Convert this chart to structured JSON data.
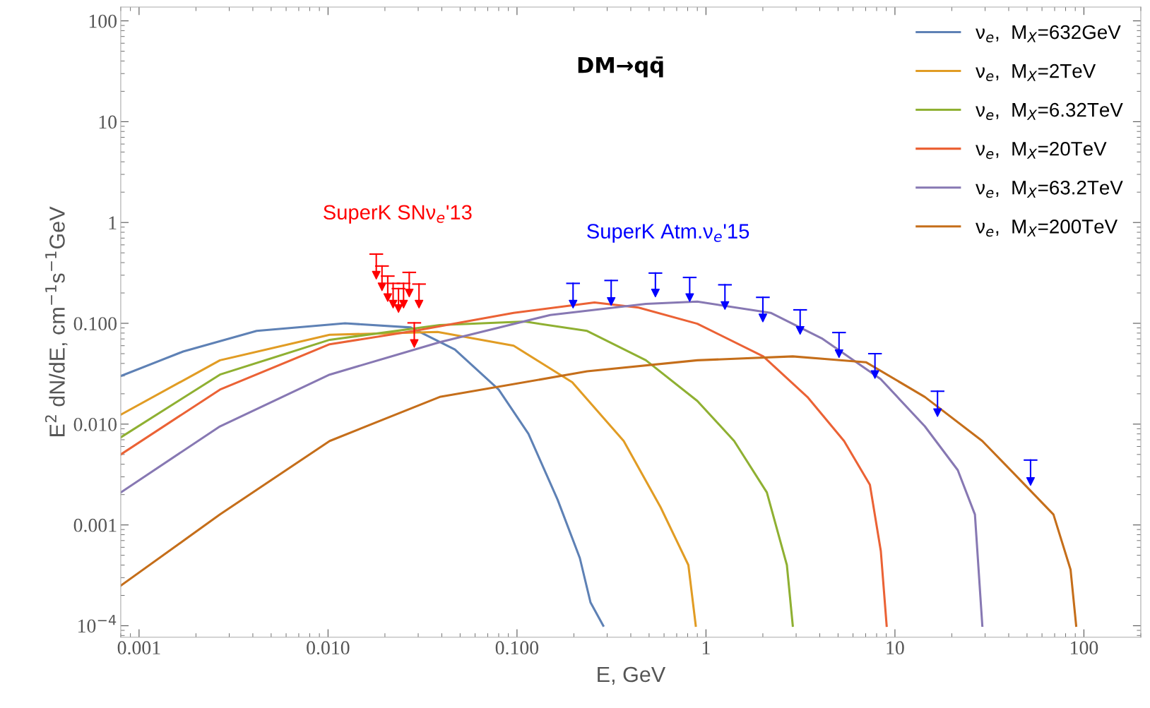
{
  "chart_data": {
    "type": "line",
    "title": "DM→qq̄",
    "xlabel": "E, GeV",
    "ylabel": "E$^{2}$ dN/dE, cm$^{−1}$s$^{−1}$GeV",
    "log": "xy",
    "grid": false,
    "legend": "top right",
    "xlim": [
      0.0008,
      200
    ],
    "ylim": [
      7.7e-05,
      137
    ],
    "xticks": [
      {
        "value": 0.001,
        "label": "0.001"
      },
      {
        "value": 0.01,
        "label": "0.010"
      },
      {
        "value": 0.1,
        "label": "0.100"
      },
      1,
      10,
      100
    ],
    "yticks": [
      {
        "value": 0.0001,
        "label": "10$^{−4}$"
      },
      {
        "value": 0.001,
        "label": "0.001"
      },
      {
        "value": 0.01,
        "label": "0.010"
      },
      {
        "value": 0.1,
        "label": "0.100"
      },
      1,
      10,
      100
    ],
    "series": [
      {
        "name": "ν$_{e}$,  M$_{X}$=632GeV",
        "color": "#5e81b5",
        "x": [
          0.0008,
          0.00171,
          0.00419,
          0.0123,
          0.0274,
          0.0469,
          0.08,
          0.115,
          0.164,
          0.215,
          0.245,
          0.286
        ],
        "values": [
          0.03,
          0.0525,
          0.084,
          0.1,
          0.091,
          0.055,
          0.022,
          0.008,
          0.00178,
          0.00047,
          0.00017,
          0.0001
        ]
      },
      {
        "name": "ν$_{e}$,  M$_{X}$=2TeV",
        "color": "#e19c24",
        "x": [
          0.0008,
          0.00268,
          0.0102,
          0.038,
          0.096,
          0.196,
          0.367,
          0.575,
          0.807,
          0.883
        ],
        "values": [
          0.0124,
          0.043,
          0.077,
          0.082,
          0.06,
          0.026,
          0.0068,
          0.0015,
          0.0004,
          0.0001
        ]
      },
      {
        "name": "ν$_{e}$,  M$_{X}$=6.32TeV",
        "color": "#8fb032",
        "x": [
          0.0008,
          0.00268,
          0.0102,
          0.039,
          0.11,
          0.235,
          0.481,
          0.9,
          1.41,
          2.1,
          2.68,
          2.88
        ],
        "values": [
          0.0074,
          0.031,
          0.0686,
          0.096,
          0.104,
          0.084,
          0.043,
          0.017,
          0.0068,
          0.0021,
          0.0004,
          0.0001
        ]
      },
      {
        "name": "ν$_{e}$,  M$_{X}$=20TeV",
        "color": "#eb6235",
        "x": [
          0.0008,
          0.00268,
          0.0102,
          0.0286,
          0.096,
          0.257,
          0.44,
          0.9,
          2.01,
          3.44,
          5.38,
          7.37,
          8.42,
          9.04
        ],
        "values": [
          0.005,
          0.022,
          0.062,
          0.084,
          0.127,
          0.161,
          0.143,
          0.099,
          0.047,
          0.0186,
          0.0068,
          0.0025,
          0.00055,
          0.0001
        ]
      },
      {
        "name": "ν$_{e}$,  M$_{X}$=63.2TeV",
        "color": "#8778b3",
        "x": [
          0.0008,
          0.00268,
          0.0102,
          0.039,
          0.15,
          0.481,
          0.9,
          2.2,
          4.1,
          8.4,
          14.4,
          21.5,
          26.5,
          29.0
        ],
        "values": [
          0.0021,
          0.0095,
          0.031,
          0.065,
          0.121,
          0.156,
          0.164,
          0.127,
          0.071,
          0.028,
          0.0095,
          0.0035,
          0.00127,
          0.0001
        ]
      },
      {
        "name": "ν$_{e}$,  M$_{X}$=200TeV",
        "color": "#c56e1a",
        "x": [
          0.0008,
          0.00268,
          0.0102,
          0.039,
          0.235,
          0.9,
          2.88,
          7.05,
          14.4,
          29,
          42.2,
          69,
          85,
          91
        ],
        "values": [
          0.00025,
          0.00127,
          0.0068,
          0.0186,
          0.0334,
          0.043,
          0.047,
          0.041,
          0.0186,
          0.0068,
          0.0033,
          0.00127,
          0.00036,
          0.0001
        ]
      },
      {
        "name": "SuperK SNν$_{e}$'13",
        "type": "scatter",
        "marker": "triangle",
        "color": "#ff0000",
        "x": [
          0.018,
          0.0193,
          0.0207,
          0.0221,
          0.0236,
          0.0251,
          0.0269,
          0.0303,
          0.0286
        ],
        "values": [
          0.3,
          0.23,
          0.18,
          0.155,
          0.14,
          0.155,
          0.2,
          0.155,
          0.063
        ],
        "errors": [
          [
            0.3,
            0.486
          ],
          [
            0.23,
            0.37
          ],
          [
            0.18,
            0.294
          ],
          [
            0.155,
            0.249
          ],
          [
            0.14,
            0.221
          ],
          [
            0.155,
            0.249
          ],
          [
            0.2,
            0.32
          ],
          [
            0.155,
            0.245
          ],
          [
            0.063,
            0.101
          ]
        ]
      },
      {
        "name": "SuperK Atm.ν$_{e}$'15",
        "type": "scatter",
        "marker": "triangle",
        "color": "#0000ff",
        "x": [
          0.198,
          0.315,
          0.54,
          0.82,
          1.26,
          2.0,
          3.15,
          5.06,
          7.84,
          16.8,
          52.2
        ],
        "values": [
          0.155,
          0.165,
          0.2,
          0.18,
          0.15,
          0.113,
          0.085,
          0.05,
          0.031,
          0.013,
          0.0027
        ],
        "errors": [
          [
            0.155,
            0.249
          ],
          [
            0.165,
            0.266
          ],
          [
            0.2,
            0.315
          ],
          [
            0.18,
            0.285
          ],
          [
            0.15,
            0.241
          ],
          [
            0.113,
            0.181
          ],
          [
            0.085,
            0.136
          ],
          [
            0.05,
            0.081
          ],
          [
            0.031,
            0.05
          ],
          [
            0.013,
            0.0212
          ],
          [
            0.0027,
            0.0044
          ]
        ]
      }
    ]
  }
}
